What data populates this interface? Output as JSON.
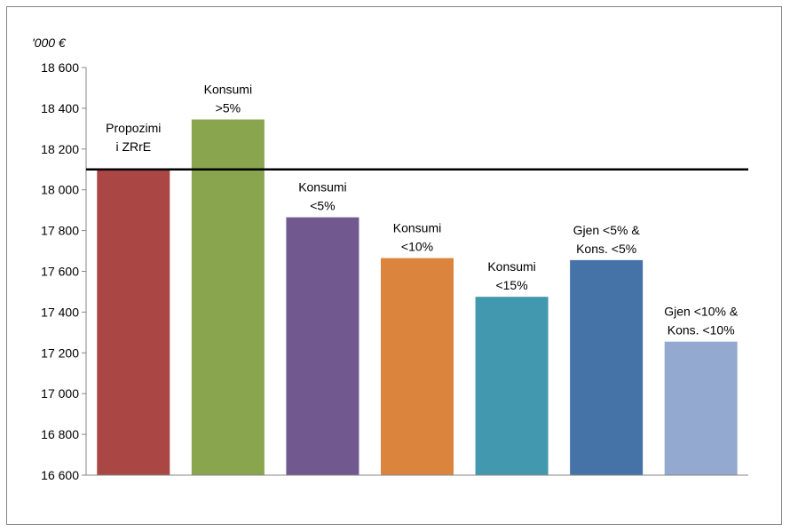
{
  "chart_data": {
    "type": "bar",
    "unit_label": "'000 €",
    "ylim": [
      16600,
      18600
    ],
    "y_ticks": [
      "18 600",
      "18 400",
      "18 200",
      "18 000",
      "17 800",
      "17 600",
      "17 400",
      "17 200",
      "17 000",
      "16 800",
      "16 600"
    ],
    "y_tick_values": [
      18600,
      18400,
      18200,
      18000,
      17800,
      17600,
      17400,
      17200,
      17000,
      16800,
      16600
    ],
    "grid": false,
    "legend": "none",
    "categories": [
      [
        "Propozimi",
        "i ZRrE"
      ],
      [
        "Konsumi",
        ">5%"
      ],
      [
        "Konsumi",
        "<5%"
      ],
      [
        "Konsumi",
        "<10%"
      ],
      [
        "Konsumi",
        "<15%"
      ],
      [
        "Gjen <5% &",
        "Kons. <5%"
      ],
      [
        "Gjen <10% &",
        "Kons. <10%"
      ]
    ],
    "values": [
      18100,
      18345,
      17865,
      17665,
      17475,
      17655,
      17255
    ],
    "colors": [
      "#aa4643",
      "#89a54e",
      "#71588f",
      "#db843d",
      "#4198af",
      "#4572a7",
      "#93a9cf"
    ],
    "reference_line": {
      "value": 18100,
      "color": "#000000"
    }
  }
}
